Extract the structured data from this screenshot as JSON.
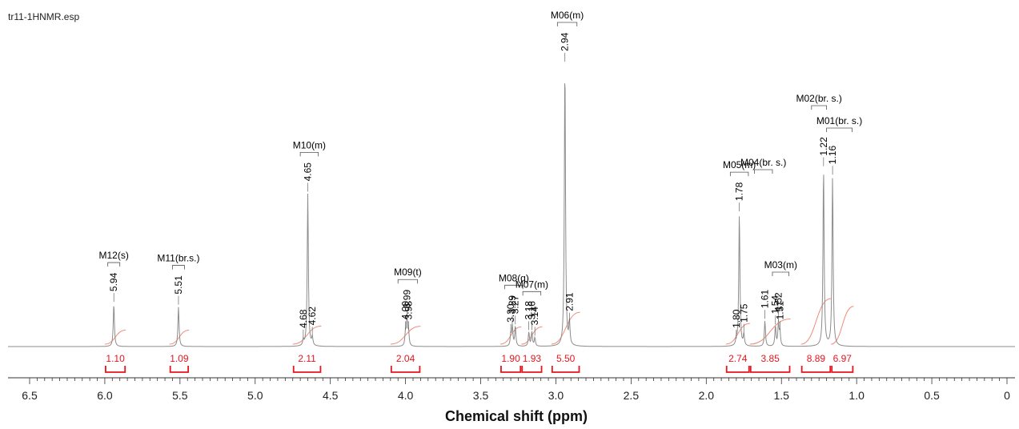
{
  "window": {
    "filename": "tr11-1HNMR.esp"
  },
  "colors": {
    "spectrum": "#8c8c8c",
    "integral_curve": "#f08c7a",
    "integral_label": "#e8141e",
    "axis": "#333333",
    "text": "#000000"
  },
  "chart_data": {
    "type": "line",
    "title": "",
    "xlabel": "Chemical shift (ppm)",
    "ylabel": "",
    "xlim": [
      6.5,
      0
    ],
    "x_reversed": true,
    "xticks": [
      "6.5",
      "6.0",
      "5.5",
      "5.0",
      "4.5",
      "4.0",
      "3.5",
      "3.0",
      "2.5",
      "2.0",
      "1.5",
      "1.0",
      "0.5",
      "0"
    ],
    "peaks": [
      {
        "ppm": 5.94,
        "height": 0.15
      },
      {
        "ppm": 5.51,
        "height": 0.14
      },
      {
        "ppm": 4.68,
        "height": 0.02
      },
      {
        "ppm": 4.65,
        "height": 0.54
      },
      {
        "ppm": 4.62,
        "height": 0.03
      },
      {
        "ppm": 4.0,
        "height": 0.05
      },
      {
        "ppm": 3.99,
        "height": 0.09
      },
      {
        "ppm": 3.98,
        "height": 0.05
      },
      {
        "ppm": 3.3,
        "height": 0.04
      },
      {
        "ppm": 3.29,
        "height": 0.07
      },
      {
        "ppm": 3.27,
        "height": 0.07
      },
      {
        "ppm": 3.18,
        "height": 0.05
      },
      {
        "ppm": 3.16,
        "height": 0.05
      },
      {
        "ppm": 3.14,
        "height": 0.03
      },
      {
        "ppm": 2.94,
        "height": 1.0
      },
      {
        "ppm": 2.91,
        "height": 0.08
      },
      {
        "ppm": 1.8,
        "height": 0.02
      },
      {
        "ppm": 1.78,
        "height": 0.47
      },
      {
        "ppm": 1.75,
        "height": 0.04
      },
      {
        "ppm": 1.61,
        "height": 0.09
      },
      {
        "ppm": 1.54,
        "height": 0.07
      },
      {
        "ppm": 1.52,
        "height": 0.08
      },
      {
        "ppm": 1.51,
        "height": 0.05
      },
      {
        "ppm": 1.22,
        "height": 0.63
      },
      {
        "ppm": 1.16,
        "height": 0.6
      }
    ],
    "multiplets": [
      {
        "label": "M12(s)",
        "from": 5.98,
        "to": 5.9
      },
      {
        "label": "M11(br.s.)",
        "from": 5.55,
        "to": 5.47
      },
      {
        "label": "M10(m)",
        "from": 4.7,
        "to": 4.58
      },
      {
        "label": "M09(t)",
        "from": 4.05,
        "to": 3.92
      },
      {
        "label": "M08(q)",
        "from": 3.34,
        "to": 3.22
      },
      {
        "label": "M07(m)",
        "from": 3.22,
        "to": 3.1
      },
      {
        "label": "M06(m)",
        "from": 2.99,
        "to": 2.86
      },
      {
        "label": "M05(m)",
        "from": 1.84,
        "to": 1.72
      },
      {
        "label": "M04(br. s.)",
        "from": 1.68,
        "to": 1.56
      },
      {
        "label": "M03(m)",
        "from": 1.56,
        "to": 1.45
      },
      {
        "label": "M02(br. s.)",
        "from": 1.3,
        "to": 1.2
      },
      {
        "label": "M01(br. s.)",
        "from": 1.2,
        "to": 1.03
      }
    ],
    "integrals": [
      {
        "value": "1.10",
        "from": 6.0,
        "to": 5.86
      },
      {
        "value": "1.09",
        "from": 5.57,
        "to": 5.44
      },
      {
        "value": "2.11",
        "from": 4.75,
        "to": 4.56
      },
      {
        "value": "2.04",
        "from": 4.1,
        "to": 3.9
      },
      {
        "value": "1.90",
        "from": 3.37,
        "to": 3.23
      },
      {
        "value": "1.93",
        "from": 3.23,
        "to": 3.09
      },
      {
        "value": "5.50",
        "from": 3.03,
        "to": 2.84
      },
      {
        "value": "2.74",
        "from": 1.87,
        "to": 1.71
      },
      {
        "value": "3.85",
        "from": 1.71,
        "to": 1.44
      },
      {
        "value": "8.89",
        "from": 1.37,
        "to": 1.17
      },
      {
        "value": "6.97",
        "from": 1.17,
        "to": 1.02
      }
    ],
    "grid": false,
    "legend": "none"
  }
}
